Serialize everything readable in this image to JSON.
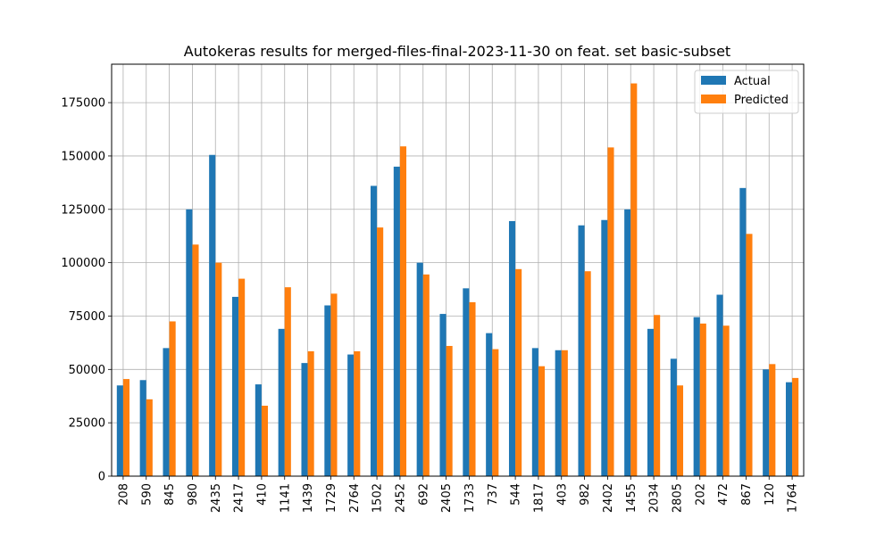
{
  "chart_data": {
    "type": "bar",
    "title": "Autokeras results for merged-files-final-2023-11-30 on feat. set basic-subset",
    "xlabel": "",
    "ylabel": "",
    "categories": [
      "208",
      "590",
      "845",
      "980",
      "2435",
      "2417",
      "410",
      "1141",
      "1439",
      "1729",
      "2764",
      "1502",
      "2452",
      "692",
      "2405",
      "1733",
      "737",
      "544",
      "1817",
      "403",
      "982",
      "2402",
      "1455",
      "2034",
      "2805",
      "202",
      "472",
      "867",
      "120",
      "1764"
    ],
    "series": [
      {
        "name": "Actual",
        "color": "#1f77b4",
        "values": [
          42500,
          45000,
          60000,
          125000,
          150500,
          84000,
          43000,
          69000,
          53000,
          80000,
          57000,
          136000,
          145000,
          100000,
          76000,
          88000,
          67000,
          119500,
          60000,
          59000,
          117500,
          120000,
          125000,
          69000,
          55000,
          74500,
          85000,
          135000,
          50000,
          44000
        ]
      },
      {
        "name": "Predicted",
        "color": "#ff7f0e",
        "values": [
          45500,
          36000,
          72500,
          108500,
          100000,
          92500,
          33000,
          88500,
          58500,
          85500,
          58500,
          116500,
          154500,
          94500,
          61000,
          81500,
          59500,
          97000,
          51500,
          59000,
          96000,
          154000,
          184000,
          75500,
          42500,
          71500,
          70500,
          113500,
          52500,
          46000
        ]
      }
    ],
    "ylim": [
      0,
      193000
    ],
    "yticks": [
      0,
      25000,
      50000,
      75000,
      100000,
      125000,
      150000,
      175000
    ],
    "grid": true,
    "legend_position": "top-right"
  }
}
